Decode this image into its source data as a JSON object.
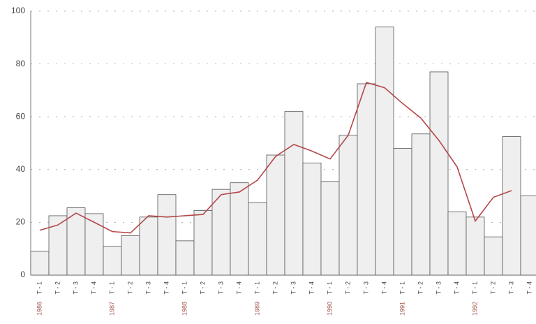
{
  "chart_data": {
    "type": "bar",
    "groups": [
      {
        "label": "1986",
        "categories": [
          "T - 1",
          "T - 2",
          "T - 3",
          "T - 4"
        ]
      },
      {
        "label": "1987",
        "categories": [
          "T - 1",
          "T - 2",
          "T - 3",
          "T - 4"
        ]
      },
      {
        "label": "1988",
        "categories": [
          "T - 1",
          "T - 2",
          "T - 3",
          "T - 4"
        ]
      },
      {
        "label": "1989",
        "categories": [
          "T - 1",
          "T - 2",
          "T - 3",
          "T - 4"
        ]
      },
      {
        "label": "1990",
        "categories": [
          "T - 1",
          "T - 2",
          "T - 3",
          "T - 4"
        ]
      },
      {
        "label": "1991",
        "categories": [
          "T - 1",
          "T - 2",
          "T - 3",
          "T - 4"
        ]
      },
      {
        "label": "1992",
        "categories": [
          "T - 1",
          "T - 2",
          "T - 3",
          "T - 4"
        ]
      }
    ],
    "series": [
      {
        "type": "bar",
        "color": "#efefef",
        "values": [
          9,
          22.5,
          25.5,
          23.3,
          11,
          15,
          22,
          30.5,
          13,
          24.5,
          32.5,
          35,
          27.5,
          45.5,
          62,
          42.5,
          35.5,
          53,
          72.5,
          94,
          48,
          53.5,
          77,
          24,
          22,
          14.5,
          52.5,
          30
        ]
      },
      {
        "type": "line",
        "color": "#b5474a",
        "values": [
          17,
          19,
          23.5,
          20,
          16.5,
          16,
          22.5,
          22,
          22.5,
          23,
          30.5,
          31.5,
          36,
          45,
          49.5,
          47,
          44,
          53,
          73,
          71,
          65,
          59.5,
          51,
          41,
          20.5,
          29.5,
          32,
          null
        ]
      }
    ],
    "ylim": [
      0,
      100
    ],
    "yticks": [
      0,
      20,
      40,
      60,
      80,
      100
    ],
    "grid": true
  }
}
